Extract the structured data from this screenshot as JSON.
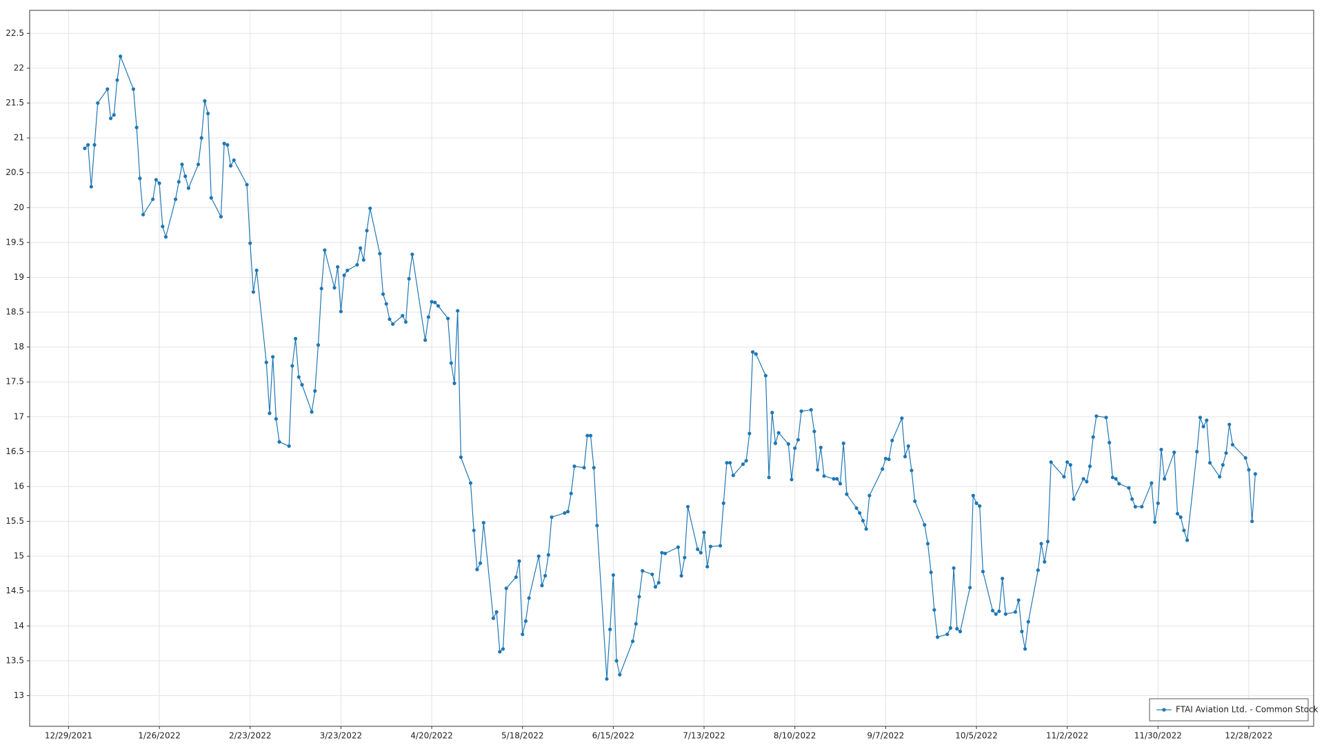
{
  "chart_data": {
    "type": "line",
    "grid": true,
    "legend": "lower right",
    "x": [
      "2022-01-03",
      "2022-01-04",
      "2022-01-05",
      "2022-01-06",
      "2022-01-07",
      "2022-01-10",
      "2022-01-11",
      "2022-01-12",
      "2022-01-13",
      "2022-01-14",
      "2022-01-18",
      "2022-01-19",
      "2022-01-20",
      "2022-01-21",
      "2022-01-24",
      "2022-01-25",
      "2022-01-26",
      "2022-01-27",
      "2022-01-28",
      "2022-01-31",
      "2022-02-01",
      "2022-02-02",
      "2022-02-03",
      "2022-02-04",
      "2022-02-07",
      "2022-02-08",
      "2022-02-09",
      "2022-02-10",
      "2022-02-11",
      "2022-02-14",
      "2022-02-15",
      "2022-02-16",
      "2022-02-17",
      "2022-02-18",
      "2022-02-22",
      "2022-02-23",
      "2022-02-24",
      "2022-02-25",
      "2022-02-28",
      "2022-03-01",
      "2022-03-02",
      "2022-03-03",
      "2022-03-04",
      "2022-03-07",
      "2022-03-08",
      "2022-03-09",
      "2022-03-10",
      "2022-03-11",
      "2022-03-14",
      "2022-03-15",
      "2022-03-16",
      "2022-03-17",
      "2022-03-18",
      "2022-03-21",
      "2022-03-22",
      "2022-03-23",
      "2022-03-24",
      "2022-03-25",
      "2022-03-28",
      "2022-03-29",
      "2022-03-30",
      "2022-03-31",
      "2022-04-01",
      "2022-04-04",
      "2022-04-05",
      "2022-04-06",
      "2022-04-07",
      "2022-04-08",
      "2022-04-11",
      "2022-04-12",
      "2022-04-13",
      "2022-04-14",
      "2022-04-18",
      "2022-04-19",
      "2022-04-20",
      "2022-04-21",
      "2022-04-22",
      "2022-04-25",
      "2022-04-26",
      "2022-04-27",
      "2022-04-28",
      "2022-04-29",
      "2022-05-02",
      "2022-05-03",
      "2022-05-04",
      "2022-05-05",
      "2022-05-06",
      "2022-05-09",
      "2022-05-10",
      "2022-05-11",
      "2022-05-12",
      "2022-05-13",
      "2022-05-16",
      "2022-05-17",
      "2022-05-18",
      "2022-05-19",
      "2022-05-20",
      "2022-05-23",
      "2022-05-24",
      "2022-05-25",
      "2022-05-26",
      "2022-05-27",
      "2022-05-31",
      "2022-06-01",
      "2022-06-02",
      "2022-06-03",
      "2022-06-06",
      "2022-06-07",
      "2022-06-08",
      "2022-06-09",
      "2022-06-10",
      "2022-06-13",
      "2022-06-14",
      "2022-06-15",
      "2022-06-16",
      "2022-06-17",
      "2022-06-21",
      "2022-06-22",
      "2022-06-23",
      "2022-06-24",
      "2022-06-27",
      "2022-06-28",
      "2022-06-29",
      "2022-06-30",
      "2022-07-01",
      "2022-07-05",
      "2022-07-06",
      "2022-07-07",
      "2022-07-08",
      "2022-07-11",
      "2022-07-12",
      "2022-07-13",
      "2022-07-14",
      "2022-07-15",
      "2022-07-18",
      "2022-07-19",
      "2022-07-20",
      "2022-07-21",
      "2022-07-22",
      "2022-07-25",
      "2022-07-26",
      "2022-07-27",
      "2022-07-28",
      "2022-07-29",
      "2022-08-01",
      "2022-08-02",
      "2022-08-03",
      "2022-08-04",
      "2022-08-05",
      "2022-08-08",
      "2022-08-09",
      "2022-08-10",
      "2022-08-11",
      "2022-08-12",
      "2022-08-15",
      "2022-08-16",
      "2022-08-17",
      "2022-08-18",
      "2022-08-19",
      "2022-08-22",
      "2022-08-23",
      "2022-08-24",
      "2022-08-25",
      "2022-08-26",
      "2022-08-29",
      "2022-08-30",
      "2022-08-31",
      "2022-09-01",
      "2022-09-02",
      "2022-09-06",
      "2022-09-07",
      "2022-09-08",
      "2022-09-09",
      "2022-09-12",
      "2022-09-13",
      "2022-09-14",
      "2022-09-15",
      "2022-09-16",
      "2022-09-19",
      "2022-09-20",
      "2022-09-21",
      "2022-09-22",
      "2022-09-23",
      "2022-09-26",
      "2022-09-27",
      "2022-09-28",
      "2022-09-29",
      "2022-09-30",
      "2022-10-03",
      "2022-10-04",
      "2022-10-05",
      "2022-10-06",
      "2022-10-07",
      "2022-10-10",
      "2022-10-11",
      "2022-10-12",
      "2022-10-13",
      "2022-10-14",
      "2022-10-17",
      "2022-10-18",
      "2022-10-19",
      "2022-10-20",
      "2022-10-21",
      "2022-10-24",
      "2022-10-25",
      "2022-10-26",
      "2022-10-27",
      "2022-10-28",
      "2022-11-01",
      "2022-11-02",
      "2022-11-03",
      "2022-11-04",
      "2022-11-07",
      "2022-11-08",
      "2022-11-09",
      "2022-11-10",
      "2022-11-11",
      "2022-11-14",
      "2022-11-15",
      "2022-11-16",
      "2022-11-17",
      "2022-11-18",
      "2022-11-21",
      "2022-11-22",
      "2022-11-23",
      "2022-11-25",
      "2022-11-28",
      "2022-11-29",
      "2022-11-30",
      "2022-12-01",
      "2022-12-02",
      "2022-12-05",
      "2022-12-06",
      "2022-12-07",
      "2022-12-08",
      "2022-12-09",
      "2022-12-12",
      "2022-12-13",
      "2022-12-14",
      "2022-12-15",
      "2022-12-16",
      "2022-12-19",
      "2022-12-20",
      "2022-12-21",
      "2022-12-22",
      "2022-12-23",
      "2022-12-27",
      "2022-12-28",
      "2022-12-29",
      "2022-12-30"
    ],
    "series": [
      {
        "name": "FTAI Aviation Ltd. - Common Stock",
        "color": "#1f77b4",
        "values": [
          20.85,
          20.9,
          20.3,
          20.9,
          21.5,
          21.7,
          21.28,
          21.33,
          21.83,
          22.17,
          21.7,
          21.15,
          20.42,
          19.9,
          20.12,
          20.4,
          20.35,
          19.73,
          19.58,
          20.12,
          20.37,
          20.62,
          20.45,
          20.28,
          20.62,
          21.0,
          21.53,
          21.35,
          20.14,
          19.87,
          20.92,
          20.9,
          20.6,
          20.68,
          20.33,
          19.49,
          18.79,
          19.1,
          17.78,
          17.05,
          17.86,
          16.97,
          16.64,
          16.58,
          17.73,
          18.12,
          17.57,
          17.46,
          17.07,
          17.37,
          18.03,
          18.84,
          19.39,
          18.85,
          19.15,
          18.51,
          19.03,
          19.1,
          19.18,
          19.42,
          19.25,
          19.67,
          19.99,
          19.34,
          18.76,
          18.62,
          18.4,
          18.33,
          18.45,
          18.36,
          18.98,
          19.33,
          18.1,
          18.43,
          18.65,
          18.64,
          18.59,
          18.41,
          17.77,
          17.48,
          18.52,
          16.42,
          16.05,
          15.37,
          14.81,
          14.9,
          15.48,
          14.11,
          14.2,
          13.63,
          13.67,
          14.54,
          14.7,
          14.93,
          13.88,
          14.07,
          14.4,
          15.0,
          14.58,
          14.72,
          15.02,
          15.56,
          15.62,
          15.64,
          15.9,
          16.29,
          16.27,
          16.73,
          16.73,
          16.27,
          15.44,
          13.24,
          13.95,
          14.73,
          13.5,
          13.3,
          13.78,
          14.03,
          14.42,
          14.79,
          14.74,
          14.56,
          14.62,
          15.05,
          15.04,
          15.13,
          14.72,
          14.98,
          15.71,
          15.1,
          15.05,
          15.34,
          14.85,
          15.14,
          15.15,
          15.76,
          16.34,
          16.34,
          16.16,
          16.32,
          16.37,
          16.76,
          17.93,
          17.9,
          17.59,
          16.13,
          17.06,
          16.62,
          16.77,
          16.61,
          16.1,
          16.55,
          16.67,
          17.08,
          17.1,
          16.79,
          16.24,
          16.56,
          16.15,
          16.11,
          16.11,
          16.04,
          16.62,
          15.89,
          15.69,
          15.62,
          15.51,
          15.39,
          15.87,
          16.25,
          16.4,
          16.39,
          16.66,
          16.98,
          16.43,
          16.58,
          16.23,
          15.79,
          15.45,
          15.18,
          14.77,
          14.23,
          13.84,
          13.88,
          13.97,
          14.83,
          13.96,
          13.92,
          14.55,
          15.87,
          15.76,
          15.72,
          14.78,
          14.22,
          14.17,
          14.21,
          14.68,
          14.17,
          14.2,
          14.37,
          13.92,
          13.67,
          14.06,
          14.8,
          15.18,
          14.92,
          15.21,
          16.35,
          16.14,
          16.35,
          16.31,
          15.82,
          16.11,
          16.07,
          16.29,
          16.71,
          17.01,
          16.99,
          16.63,
          16.13,
          16.11,
          16.04,
          15.98,
          15.82,
          15.71,
          15.71,
          16.05,
          15.49,
          15.76,
          16.53,
          16.11,
          16.49,
          15.61,
          15.56,
          15.37,
          15.23,
          16.5,
          16.99,
          16.86,
          16.95,
          16.34,
          16.14,
          16.31,
          16.48,
          16.89,
          16.6,
          16.41,
          16.24,
          15.5,
          16.18
        ]
      }
    ],
    "xlim": [
      "2021-12-17",
      "2023-01-17"
    ],
    "xticks": [
      {
        "value": "2021-12-29",
        "label": "12/29/2021"
      },
      {
        "value": "2022-01-26",
        "label": "1/26/2022"
      },
      {
        "value": "2022-02-23",
        "label": "2/23/2022"
      },
      {
        "value": "2022-03-23",
        "label": "3/23/2022"
      },
      {
        "value": "2022-04-20",
        "label": "4/20/2022"
      },
      {
        "value": "2022-05-18",
        "label": "5/18/2022"
      },
      {
        "value": "2022-06-15",
        "label": "6/15/2022"
      },
      {
        "value": "2022-07-13",
        "label": "7/13/2022"
      },
      {
        "value": "2022-08-10",
        "label": "8/10/2022"
      },
      {
        "value": "2022-09-07",
        "label": "9/7/2022"
      },
      {
        "value": "2022-10-05",
        "label": "10/5/2022"
      },
      {
        "value": "2022-11-02",
        "label": "11/2/2022"
      },
      {
        "value": "2022-11-30",
        "label": "11/30/2022"
      },
      {
        "value": "2022-12-28",
        "label": "12/28/2022"
      }
    ],
    "ylim": [
      12.56,
      22.83
    ],
    "yticks": [
      13,
      13.5,
      14,
      14.5,
      15,
      15.5,
      16,
      16.5,
      17,
      17.5,
      18,
      18.5,
      19,
      19.5,
      20,
      20.5,
      21,
      21.5,
      22,
      22.5
    ]
  }
}
